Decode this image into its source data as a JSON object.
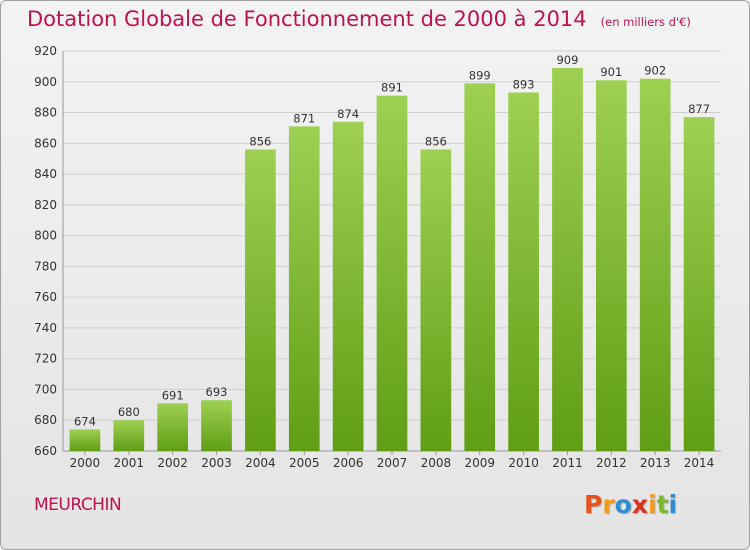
{
  "title": "Dotation Globale de Fonctionnement de 2000 à 2014",
  "unit": "(en milliers d'€)",
  "commune": "MEURCHIN",
  "logo": "Proxiti",
  "colors": {
    "title": "#c0124f",
    "bar_top": "#9ed052",
    "bar_bottom": "#5f9e15",
    "grid": "#d0d0d0",
    "axis": "#999999",
    "logo": [
      "#e8531c",
      "#f39c1c",
      "#2e8fd0",
      "#d9341c",
      "#f39c1c",
      "#7cb82f",
      "#2e8fd0"
    ]
  },
  "chart_data": {
    "type": "bar",
    "categories": [
      "2000",
      "2001",
      "2002",
      "2003",
      "2004",
      "2005",
      "2006",
      "2007",
      "2008",
      "2009",
      "2010",
      "2011",
      "2012",
      "2013",
      "2014"
    ],
    "values": [
      674,
      680,
      691,
      693,
      856,
      871,
      874,
      891,
      856,
      899,
      893,
      909,
      901,
      902,
      877
    ],
    "ylim": [
      660,
      920
    ],
    "yticks": [
      660,
      680,
      700,
      720,
      740,
      760,
      780,
      800,
      820,
      840,
      860,
      880,
      900,
      920
    ],
    "title": "Dotation Globale de Fonctionnement de 2000 à 2014",
    "xlabel": "",
    "ylabel": "",
    "grid": true,
    "data_labels": true
  }
}
